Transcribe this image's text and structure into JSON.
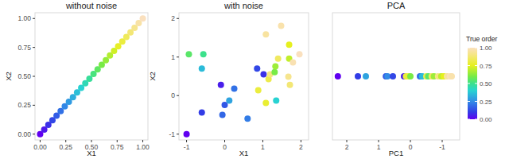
{
  "chart_data": [
    {
      "type": "scatter",
      "title": "without noise",
      "x_label": "X1",
      "y_label": "X2",
      "grid": false,
      "xlim": [
        -0.05,
        1.05
      ],
      "ylim": [
        -0.05,
        1.05
      ],
      "xticks": [
        {
          "value": 0,
          "label": "0.00"
        },
        {
          "value": 0.25,
          "label": "0.25"
        },
        {
          "value": 0.5,
          "label": "0.50"
        },
        {
          "value": 0.75,
          "label": "0.75"
        },
        {
          "value": 1,
          "label": "1.00"
        }
      ],
      "yticks": [
        {
          "value": 0,
          "label": "0.00"
        },
        {
          "value": 0.25,
          "label": "0.25"
        },
        {
          "value": 0.5,
          "label": "0.50"
        },
        {
          "value": 0.75,
          "label": "0.75"
        },
        {
          "value": 1,
          "label": "1.00"
        }
      ],
      "x": [
        0,
        0.04,
        0.08,
        0.12,
        0.16,
        0.2,
        0.24,
        0.28,
        0.32,
        0.36,
        0.4,
        0.44,
        0.48,
        0.52,
        0.56,
        0.6,
        0.64,
        0.68,
        0.72,
        0.76,
        0.8,
        0.84,
        0.88,
        0.92,
        0.96,
        1
      ],
      "values": [
        0,
        0.04,
        0.08,
        0.12,
        0.16,
        0.2,
        0.24,
        0.28,
        0.32,
        0.36,
        0.4,
        0.44,
        0.48,
        0.52,
        0.56,
        0.6,
        0.64,
        0.68,
        0.72,
        0.76,
        0.8,
        0.84,
        0.88,
        0.92,
        0.96,
        1
      ],
      "order": [
        0,
        0.04,
        0.08,
        0.12,
        0.16,
        0.2,
        0.24,
        0.28,
        0.32,
        0.36,
        0.4,
        0.44,
        0.48,
        0.52,
        0.56,
        0.6,
        0.64,
        0.68,
        0.72,
        0.76,
        0.8,
        0.84,
        0.88,
        0.92,
        0.96,
        1
      ]
    },
    {
      "type": "scatter",
      "title": "with noise",
      "x_label": "X1",
      "y_label": "X2",
      "grid": false,
      "xlim": [
        -1.2,
        2.2
      ],
      "ylim": [
        -1.15,
        2.15
      ],
      "xticks": [
        -1,
        0,
        1,
        2
      ],
      "yticks": [
        -1,
        0,
        1,
        2
      ],
      "x": [
        -1.0,
        -0.6,
        -0.6,
        -0.94,
        -0.56,
        0.0,
        0.25,
        -0.06,
        -0.1,
        0.12,
        0.6,
        0.85,
        1.02,
        0.88,
        1.08,
        1.08,
        1.15,
        1.19,
        1.4,
        1.31,
        1.48,
        1.35,
        1.33,
        1.69,
        1.69,
        1.71,
        1.79,
        1.96,
        1.67
      ],
      "values": [
        -1.0,
        -0.44,
        0.7,
        1.07,
        1.07,
        -0.24,
        0.18,
        -0.5,
        0.28,
        -0.13,
        -0.6,
        0.7,
        0.55,
        0.14,
        -0.19,
        1.59,
        0.43,
        0.55,
        0.96,
        0.61,
        1.81,
        -0.13,
        0.76,
        1.32,
        0.96,
        0.28,
        0.86,
        1.07,
        0.49
      ],
      "order": [
        0.0,
        0.1,
        0.35,
        0.55,
        0.5,
        0.15,
        0.2,
        0.18,
        0.05,
        0.3,
        0.22,
        0.12,
        0.08,
        0.8,
        0.78,
        0.95,
        0.82,
        0.9,
        0.85,
        0.6,
        0.97,
        0.4,
        0.65,
        0.75,
        0.7,
        0.88,
        0.98,
        1.0,
        0.92
      ]
    },
    {
      "type": "scatter",
      "title": "PCA",
      "x_label": "PC1",
      "grid": false,
      "tick_labels": "x",
      "xlim": [
        2.45,
        -1.55
      ],
      "ylim": [
        -1,
        1
      ],
      "xticks": [
        2,
        1,
        0,
        -1
      ],
      "x": [
        2.28,
        1.65,
        1.4,
        0.77,
        0.72,
        0.55,
        0.2,
        0.14,
        0.06,
        0.0,
        -0.3,
        -0.37,
        -0.5,
        -0.56,
        -0.67,
        -0.74,
        -0.87,
        -0.97,
        -1.05,
        -1.15,
        -1.25,
        -1.3
      ],
      "values": [
        0,
        0,
        0,
        0,
        0,
        0,
        0,
        0,
        0,
        0,
        0,
        0,
        0,
        0,
        0,
        0,
        0,
        0,
        0,
        0,
        0,
        0
      ],
      "order": [
        0.0,
        0.1,
        0.3,
        0.15,
        0.25,
        0.12,
        0.05,
        0.8,
        0.78,
        0.6,
        0.2,
        0.35,
        0.82,
        0.55,
        0.85,
        0.65,
        0.9,
        0.7,
        0.75,
        0.95,
        1.0,
        0.97
      ],
      "color_bar": {
        "title": "True order",
        "range": [
          0,
          1
        ],
        "ticks": [
          {
            "value": 0,
            "label": "0.00"
          },
          {
            "value": 0.25,
            "label": "0.25"
          },
          {
            "value": 0.5,
            "label": "0.50"
          },
          {
            "value": 0.75,
            "label": "0.75"
          },
          {
            "value": 1,
            "label": "1.00"
          }
        ]
      }
    }
  ]
}
